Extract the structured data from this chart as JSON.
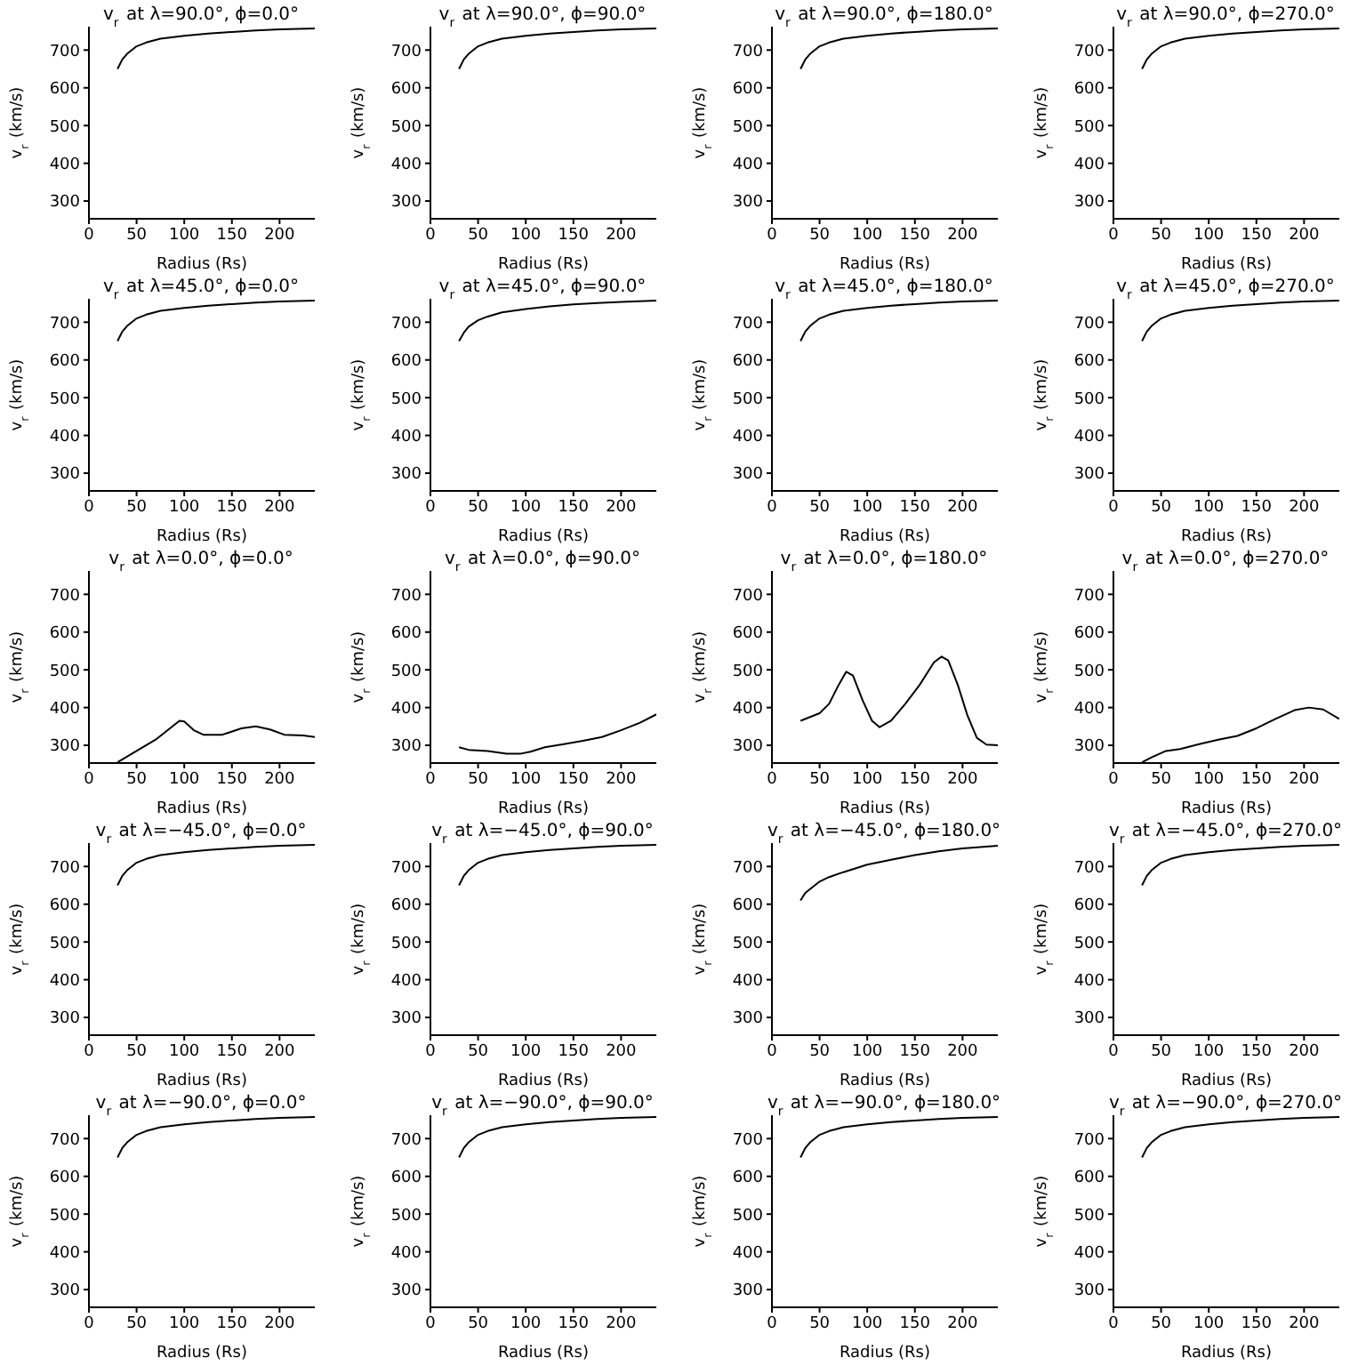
{
  "chart_data": [
    {
      "type": "line",
      "title": "v$_{r}$ at λ=90.0°, ϕ=0.0°",
      "xlabel": "Radius (Rs)",
      "ylabel": "v$_{r}$ (km/s)",
      "xlim": [
        0,
        237
      ],
      "ylim": [
        253,
        762
      ],
      "xticks": [
        0,
        50,
        100,
        150,
        200
      ],
      "yticks": [
        300,
        400,
        500,
        600,
        700
      ],
      "series": [
        {
          "color": "#000000",
          "x": [
            30,
            35,
            40,
            50,
            60,
            75,
            100,
            125,
            150,
            175,
            200,
            237
          ],
          "values": [
            650,
            675,
            690,
            710,
            720,
            730,
            738,
            744,
            748,
            752,
            755,
            757
          ]
        }
      ]
    },
    {
      "type": "line",
      "title": "v$_{r}$ at λ=90.0°, ϕ=90.0°",
      "xlabel": "Radius (Rs)",
      "ylabel": "v$_{r}$ (km/s)",
      "xlim": [
        0,
        237
      ],
      "ylim": [
        253,
        762
      ],
      "xticks": [
        0,
        50,
        100,
        150,
        200
      ],
      "yticks": [
        300,
        400,
        500,
        600,
        700
      ],
      "series": [
        {
          "color": "#000000",
          "x": [
            30,
            35,
            40,
            50,
            60,
            75,
            100,
            125,
            150,
            175,
            200,
            237
          ],
          "values": [
            650,
            675,
            690,
            710,
            720,
            730,
            738,
            744,
            748,
            752,
            755,
            757
          ]
        }
      ]
    },
    {
      "type": "line",
      "title": "v$_{r}$ at λ=90.0°, ϕ=180.0°",
      "xlabel": "Radius (Rs)",
      "ylabel": "v$_{r}$ (km/s)",
      "xlim": [
        0,
        237
      ],
      "ylim": [
        253,
        762
      ],
      "xticks": [
        0,
        50,
        100,
        150,
        200
      ],
      "yticks": [
        300,
        400,
        500,
        600,
        700
      ],
      "series": [
        {
          "color": "#000000",
          "x": [
            30,
            35,
            40,
            50,
            60,
            75,
            100,
            125,
            150,
            175,
            200,
            237
          ],
          "values": [
            650,
            675,
            690,
            710,
            720,
            730,
            738,
            744,
            748,
            752,
            755,
            757
          ]
        }
      ]
    },
    {
      "type": "line",
      "title": "v$_{r}$ at λ=90.0°, ϕ=270.0°",
      "xlabel": "Radius (Rs)",
      "ylabel": "v$_{r}$ (km/s)",
      "xlim": [
        0,
        237
      ],
      "ylim": [
        253,
        762
      ],
      "xticks": [
        0,
        50,
        100,
        150,
        200
      ],
      "yticks": [
        300,
        400,
        500,
        600,
        700
      ],
      "series": [
        {
          "color": "#000000",
          "x": [
            30,
            35,
            40,
            50,
            60,
            75,
            100,
            125,
            150,
            175,
            200,
            237
          ],
          "values": [
            650,
            675,
            690,
            710,
            720,
            730,
            738,
            744,
            748,
            752,
            755,
            757
          ]
        }
      ]
    },
    {
      "type": "line",
      "title": "v$_{r}$ at λ=45.0°, ϕ=0.0°",
      "xlabel": "Radius (Rs)",
      "ylabel": "v$_{r}$ (km/s)",
      "xlim": [
        0,
        237
      ],
      "ylim": [
        253,
        762
      ],
      "xticks": [
        0,
        50,
        100,
        150,
        200
      ],
      "yticks": [
        300,
        400,
        500,
        600,
        700
      ],
      "series": [
        {
          "color": "#000000",
          "x": [
            30,
            35,
            40,
            50,
            60,
            75,
            100,
            125,
            150,
            175,
            200,
            237
          ],
          "values": [
            650,
            675,
            690,
            710,
            720,
            730,
            738,
            744,
            748,
            752,
            755,
            757
          ]
        }
      ]
    },
    {
      "type": "line",
      "title": "v$_{r}$ at λ=45.0°, ϕ=90.0°",
      "xlabel": "Radius (Rs)",
      "ylabel": "v$_{r}$ (km/s)",
      "xlim": [
        0,
        237
      ],
      "ylim": [
        253,
        762
      ],
      "xticks": [
        0,
        50,
        100,
        150,
        200
      ],
      "yticks": [
        300,
        400,
        500,
        600,
        700
      ],
      "series": [
        {
          "color": "#000000",
          "x": [
            30,
            35,
            40,
            50,
            60,
            75,
            100,
            125,
            150,
            175,
            200,
            237
          ],
          "values": [
            650,
            672,
            688,
            705,
            715,
            726,
            735,
            742,
            747,
            751,
            754,
            757
          ]
        }
      ]
    },
    {
      "type": "line",
      "title": "v$_{r}$ at λ=45.0°, ϕ=180.0°",
      "xlabel": "Radius (Rs)",
      "ylabel": "v$_{r}$ (km/s)",
      "xlim": [
        0,
        237
      ],
      "ylim": [
        253,
        762
      ],
      "xticks": [
        0,
        50,
        100,
        150,
        200
      ],
      "yticks": [
        300,
        400,
        500,
        600,
        700
      ],
      "series": [
        {
          "color": "#000000",
          "x": [
            30,
            35,
            40,
            50,
            60,
            75,
            100,
            125,
            150,
            175,
            200,
            237
          ],
          "values": [
            650,
            675,
            690,
            710,
            720,
            730,
            738,
            744,
            748,
            752,
            755,
            757
          ]
        }
      ]
    },
    {
      "type": "line",
      "title": "v$_{r}$ at λ=45.0°, ϕ=270.0°",
      "xlabel": "Radius (Rs)",
      "ylabel": "v$_{r}$ (km/s)",
      "xlim": [
        0,
        237
      ],
      "ylim": [
        253,
        762
      ],
      "xticks": [
        0,
        50,
        100,
        150,
        200
      ],
      "yticks": [
        300,
        400,
        500,
        600,
        700
      ],
      "series": [
        {
          "color": "#000000",
          "x": [
            30,
            35,
            40,
            50,
            60,
            75,
            100,
            125,
            150,
            175,
            200,
            237
          ],
          "values": [
            650,
            675,
            690,
            710,
            720,
            730,
            738,
            744,
            748,
            752,
            755,
            757
          ]
        }
      ]
    },
    {
      "type": "line",
      "title": "v$_{r}$ at λ=0.0°, ϕ=0.0°",
      "xlabel": "Radius (Rs)",
      "ylabel": "v$_{r}$ (km/s)",
      "xlim": [
        0,
        237
      ],
      "ylim": [
        253,
        762
      ],
      "xticks": [
        0,
        50,
        100,
        150,
        200
      ],
      "yticks": [
        300,
        400,
        500,
        600,
        700
      ],
      "series": [
        {
          "color": "#000000",
          "x": [
            30,
            50,
            70,
            85,
            95,
            100,
            110,
            120,
            140,
            160,
            175,
            190,
            205,
            225,
            237
          ],
          "values": [
            255,
            285,
            315,
            345,
            365,
            363,
            340,
            328,
            328,
            345,
            350,
            342,
            328,
            326,
            322
          ]
        }
      ]
    },
    {
      "type": "line",
      "title": "v$_{r}$ at λ=0.0°, ϕ=90.0°",
      "xlabel": "Radius (Rs)",
      "ylabel": "v$_{r}$ (km/s)",
      "xlim": [
        0,
        237
      ],
      "ylim": [
        253,
        762
      ],
      "xticks": [
        0,
        50,
        100,
        150,
        200
      ],
      "yticks": [
        300,
        400,
        500,
        600,
        700
      ],
      "series": [
        {
          "color": "#000000",
          "x": [
            30,
            40,
            60,
            80,
            95,
            105,
            120,
            140,
            160,
            180,
            200,
            220,
            237
          ],
          "values": [
            295,
            288,
            285,
            278,
            278,
            283,
            295,
            303,
            312,
            322,
            340,
            360,
            382
          ]
        }
      ]
    },
    {
      "type": "line",
      "title": "v$_{r}$ at λ=0.0°, ϕ=180.0°",
      "xlabel": "Radius (Rs)",
      "ylabel": "v$_{r}$ (km/s)",
      "xlim": [
        0,
        237
      ],
      "ylim": [
        253,
        762
      ],
      "xticks": [
        0,
        50,
        100,
        150,
        200
      ],
      "yticks": [
        300,
        400,
        500,
        600,
        700
      ],
      "series": [
        {
          "color": "#000000",
          "x": [
            30,
            40,
            50,
            60,
            70,
            78,
            85,
            95,
            105,
            113,
            125,
            140,
            155,
            170,
            178,
            185,
            195,
            205,
            215,
            225,
            237
          ],
          "values": [
            365,
            375,
            385,
            410,
            460,
            495,
            485,
            420,
            365,
            348,
            365,
            410,
            460,
            520,
            535,
            525,
            460,
            380,
            320,
            302,
            300
          ]
        }
      ]
    },
    {
      "type": "line",
      "title": "v$_{r}$ at λ=0.0°, ϕ=270.0°",
      "xlabel": "Radius (Rs)",
      "ylabel": "v$_{r}$ (km/s)",
      "xlim": [
        0,
        237
      ],
      "ylim": [
        253,
        762
      ],
      "xticks": [
        0,
        50,
        100,
        150,
        200
      ],
      "yticks": [
        300,
        400,
        500,
        600,
        700
      ],
      "series": [
        {
          "color": "#000000",
          "x": [
            30,
            40,
            55,
            70,
            90,
            110,
            130,
            150,
            170,
            190,
            205,
            220,
            237
          ],
          "values": [
            255,
            268,
            285,
            290,
            303,
            315,
            325,
            345,
            370,
            393,
            400,
            395,
            370
          ]
        }
      ]
    },
    {
      "type": "line",
      "title": "v$_{r}$ at λ=−45.0°, ϕ=0.0°",
      "xlabel": "Radius (Rs)",
      "ylabel": "v$_{r}$ (km/s)",
      "xlim": [
        0,
        237
      ],
      "ylim": [
        253,
        762
      ],
      "xticks": [
        0,
        50,
        100,
        150,
        200
      ],
      "yticks": [
        300,
        400,
        500,
        600,
        700
      ],
      "series": [
        {
          "color": "#000000",
          "x": [
            30,
            35,
            40,
            50,
            60,
            75,
            100,
            125,
            150,
            175,
            200,
            237
          ],
          "values": [
            650,
            675,
            690,
            710,
            720,
            730,
            738,
            744,
            748,
            752,
            755,
            757
          ]
        }
      ]
    },
    {
      "type": "line",
      "title": "v$_{r}$ at λ=−45.0°, ϕ=90.0°",
      "xlabel": "Radius (Rs)",
      "ylabel": "v$_{r}$ (km/s)",
      "xlim": [
        0,
        237
      ],
      "ylim": [
        253,
        762
      ],
      "xticks": [
        0,
        50,
        100,
        150,
        200
      ],
      "yticks": [
        300,
        400,
        500,
        600,
        700
      ],
      "series": [
        {
          "color": "#000000",
          "x": [
            30,
            35,
            40,
            50,
            60,
            75,
            100,
            125,
            150,
            175,
            200,
            237
          ],
          "values": [
            650,
            675,
            690,
            710,
            720,
            730,
            738,
            744,
            748,
            752,
            755,
            757
          ]
        }
      ]
    },
    {
      "type": "line",
      "title": "v$_{r}$ at λ=−45.0°, ϕ=180.0°",
      "xlabel": "Radius (Rs)",
      "ylabel": "v$_{r}$ (km/s)",
      "xlim": [
        0,
        237
      ],
      "ylim": [
        253,
        762
      ],
      "xticks": [
        0,
        50,
        100,
        150,
        200
      ],
      "yticks": [
        300,
        400,
        500,
        600,
        700
      ],
      "series": [
        {
          "color": "#000000",
          "x": [
            30,
            35,
            40,
            50,
            60,
            75,
            100,
            125,
            150,
            175,
            200,
            237
          ],
          "values": [
            610,
            630,
            640,
            660,
            672,
            685,
            705,
            718,
            730,
            740,
            748,
            755
          ]
        }
      ]
    },
    {
      "type": "line",
      "title": "v$_{r}$ at λ=−45.0°, ϕ=270.0°",
      "xlabel": "Radius (Rs)",
      "ylabel": "v$_{r}$ (km/s)",
      "xlim": [
        0,
        237
      ],
      "ylim": [
        253,
        762
      ],
      "xticks": [
        0,
        50,
        100,
        150,
        200
      ],
      "yticks": [
        300,
        400,
        500,
        600,
        700
      ],
      "series": [
        {
          "color": "#000000",
          "x": [
            30,
            35,
            40,
            50,
            60,
            75,
            100,
            125,
            150,
            175,
            200,
            237
          ],
          "values": [
            650,
            675,
            690,
            710,
            720,
            730,
            738,
            744,
            748,
            752,
            755,
            757
          ]
        }
      ]
    },
    {
      "type": "line",
      "title": "v$_{r}$ at λ=−90.0°, ϕ=0.0°",
      "xlabel": "Radius (Rs)",
      "ylabel": "v$_{r}$ (km/s)",
      "xlim": [
        0,
        237
      ],
      "ylim": [
        253,
        762
      ],
      "xticks": [
        0,
        50,
        100,
        150,
        200
      ],
      "yticks": [
        300,
        400,
        500,
        600,
        700
      ],
      "series": [
        {
          "color": "#000000",
          "x": [
            30,
            35,
            40,
            50,
            60,
            75,
            100,
            125,
            150,
            175,
            200,
            237
          ],
          "values": [
            650,
            675,
            690,
            710,
            720,
            730,
            738,
            744,
            748,
            752,
            755,
            757
          ]
        }
      ]
    },
    {
      "type": "line",
      "title": "v$_{r}$ at λ=−90.0°, ϕ=90.0°",
      "xlabel": "Radius (Rs)",
      "ylabel": "v$_{r}$ (km/s)",
      "xlim": [
        0,
        237
      ],
      "ylim": [
        253,
        762
      ],
      "xticks": [
        0,
        50,
        100,
        150,
        200
      ],
      "yticks": [
        300,
        400,
        500,
        600,
        700
      ],
      "series": [
        {
          "color": "#000000",
          "x": [
            30,
            35,
            40,
            50,
            60,
            75,
            100,
            125,
            150,
            175,
            200,
            237
          ],
          "values": [
            650,
            675,
            690,
            710,
            720,
            730,
            738,
            744,
            748,
            752,
            755,
            757
          ]
        }
      ]
    },
    {
      "type": "line",
      "title": "v$_{r}$ at λ=−90.0°, ϕ=180.0°",
      "xlabel": "Radius (Rs)",
      "ylabel": "v$_{r}$ (km/s)",
      "xlim": [
        0,
        237
      ],
      "ylim": [
        253,
        762
      ],
      "xticks": [
        0,
        50,
        100,
        150,
        200
      ],
      "yticks": [
        300,
        400,
        500,
        600,
        700
      ],
      "series": [
        {
          "color": "#000000",
          "x": [
            30,
            35,
            40,
            50,
            60,
            75,
            100,
            125,
            150,
            175,
            200,
            237
          ],
          "values": [
            650,
            675,
            690,
            710,
            720,
            730,
            738,
            744,
            748,
            752,
            755,
            757
          ]
        }
      ]
    },
    {
      "type": "line",
      "title": "v$_{r}$ at λ=−90.0°, ϕ=270.0°",
      "xlabel": "Radius (Rs)",
      "ylabel": "v$_{r}$ (km/s)",
      "xlim": [
        0,
        237
      ],
      "ylim": [
        253,
        762
      ],
      "xticks": [
        0,
        50,
        100,
        150,
        200
      ],
      "yticks": [
        300,
        400,
        500,
        600,
        700
      ],
      "series": [
        {
          "color": "#000000",
          "x": [
            30,
            35,
            40,
            50,
            60,
            75,
            100,
            125,
            150,
            175,
            200,
            237
          ],
          "values": [
            650,
            675,
            690,
            710,
            720,
            730,
            738,
            744,
            748,
            752,
            755,
            757
          ]
        }
      ]
    }
  ]
}
